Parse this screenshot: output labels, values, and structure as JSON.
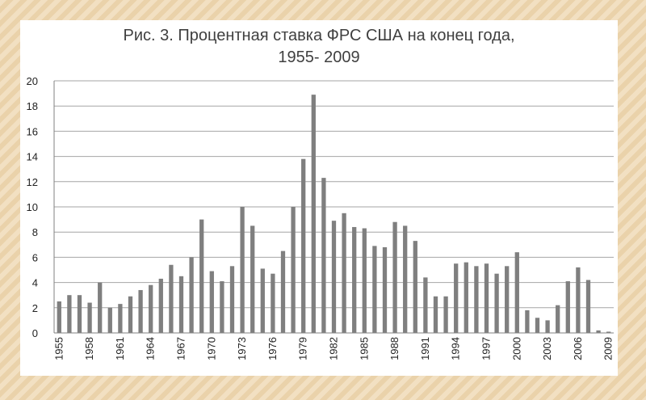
{
  "chart_data": {
    "type": "bar",
    "title": "Рис. 3. Процентная ставка ФРС США на конец года,",
    "subtitle": "1955- 2009",
    "xlabel": "",
    "ylabel": "",
    "ylim": [
      0,
      20
    ],
    "yticks": [
      0,
      2,
      4,
      6,
      8,
      10,
      12,
      14,
      16,
      18,
      20
    ],
    "grid": true,
    "categories": [
      "1955",
      "1956",
      "1957",
      "1958",
      "1959",
      "1960",
      "1961",
      "1962",
      "1963",
      "1964",
      "1965",
      "1966",
      "1967",
      "1968",
      "1969",
      "1970",
      "1971",
      "1972",
      "1973",
      "1974",
      "1975",
      "1976",
      "1977",
      "1978",
      "1979",
      "1980",
      "1981",
      "1982",
      "1983",
      "1984",
      "1985",
      "1986",
      "1987",
      "1988",
      "1989",
      "1990",
      "1991",
      "1992",
      "1993",
      "1994",
      "1995",
      "1996",
      "1997",
      "1998",
      "1999",
      "2000",
      "2001",
      "2002",
      "2003",
      "2004",
      "2005",
      "2006",
      "2007",
      "2008",
      "2009"
    ],
    "xtick_labels": [
      "1955",
      "1958",
      "1961",
      "1964",
      "1967",
      "1970",
      "1973",
      "1976",
      "1979",
      "1982",
      "1985",
      "1988",
      "1991",
      "1994",
      "1997",
      "2000",
      "2003",
      "2006",
      "2009"
    ],
    "values": [
      2.5,
      3.0,
      3.0,
      2.4,
      4.0,
      2.0,
      2.3,
      2.9,
      3.4,
      3.8,
      4.3,
      5.4,
      4.5,
      6.0,
      9.0,
      4.9,
      4.1,
      5.3,
      10.0,
      8.5,
      5.1,
      4.7,
      6.5,
      10.0,
      13.8,
      18.9,
      12.3,
      8.9,
      9.5,
      8.4,
      8.3,
      6.9,
      6.8,
      8.8,
      8.5,
      7.3,
      4.4,
      2.9,
      2.9,
      5.5,
      5.6,
      5.3,
      5.5,
      4.7,
      5.3,
      6.4,
      1.8,
      1.2,
      1.0,
      2.2,
      4.1,
      5.2,
      4.2,
      0.2,
      0.1
    ],
    "bar_color": "#7f7f7f",
    "grid_color": "#a6a6a6"
  }
}
